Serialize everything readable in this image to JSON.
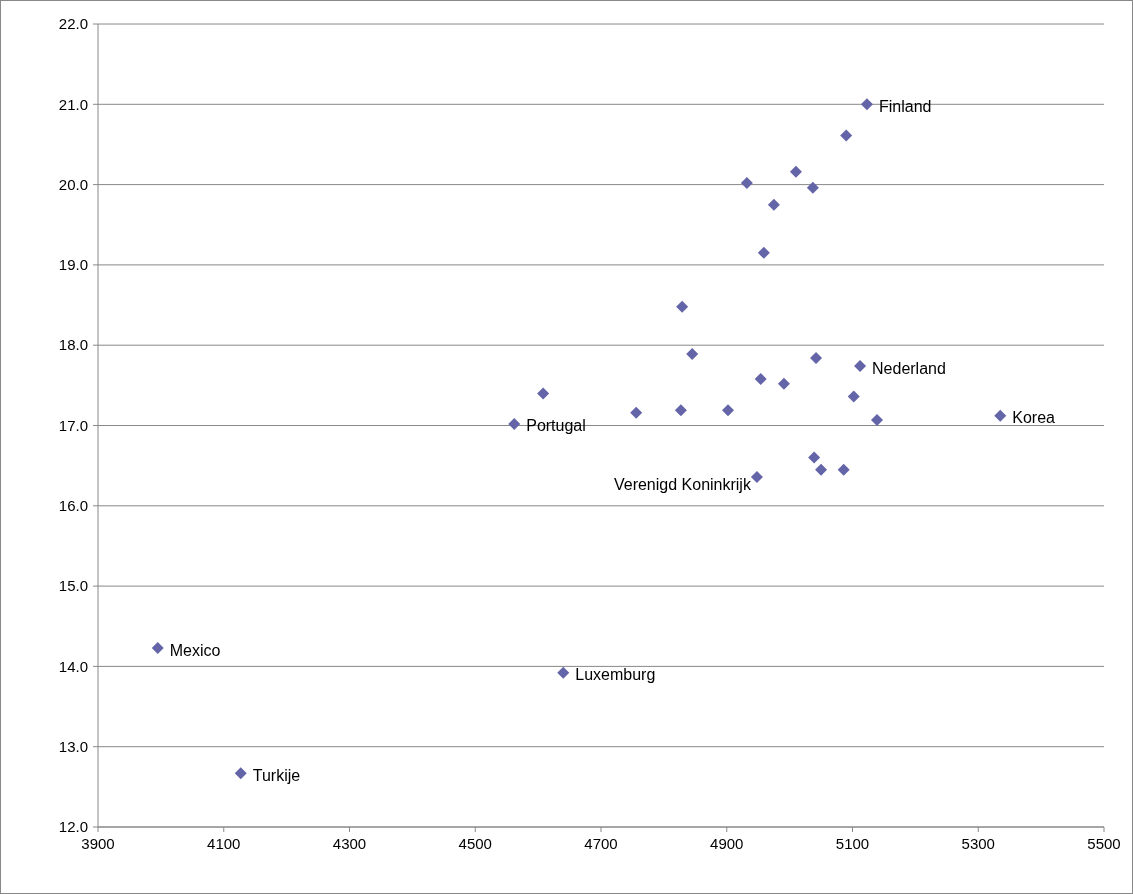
{
  "chart_data": {
    "type": "scatter",
    "marker": "diamond",
    "grid": "y",
    "xlim": [
      3900,
      5500
    ],
    "xticks": [
      3900,
      4100,
      4300,
      4500,
      4700,
      4900,
      5100,
      5300,
      5500
    ],
    "ylim": [
      12,
      22
    ],
    "yticks": [
      {
        "value": 12,
        "label": "12.0"
      },
      {
        "value": 13,
        "label": "13.0"
      },
      {
        "value": 14,
        "label": "14.0"
      },
      {
        "value": 15,
        "label": "15.0"
      },
      {
        "value": 16,
        "label": "16.0"
      },
      {
        "value": 17,
        "label": "17.0"
      },
      {
        "value": 18,
        "label": "18.0"
      },
      {
        "value": 19,
        "label": "19.0"
      },
      {
        "value": 20,
        "label": "20.0"
      },
      {
        "value": 21,
        "label": "21.0"
      },
      {
        "value": 22,
        "label": "22.0"
      }
    ],
    "series": [
      {
        "color": "#6464a8",
        "x": [
          5123,
          5090,
          5010,
          4932,
          5037,
          4975,
          4959,
          4829,
          4845,
          5042,
          5112,
          4954,
          4991,
          4608,
          5102,
          4756,
          4827,
          4902,
          5335,
          5139,
          4562,
          5039,
          5050,
          5086,
          4948,
          3995,
          4640,
          4127
        ],
        "values": [
          21.0,
          20.61,
          20.16,
          20.02,
          19.96,
          19.75,
          19.15,
          18.48,
          17.89,
          17.84,
          17.74,
          17.58,
          17.52,
          17.4,
          17.36,
          17.16,
          17.19,
          17.19,
          17.12,
          17.07,
          17.02,
          16.6,
          16.45,
          16.45,
          16.36,
          14.23,
          13.92,
          12.67
        ]
      }
    ],
    "annotations": [
      {
        "text": "Finland",
        "x": 5123,
        "y": 21.0
      },
      {
        "text": "Nederland",
        "x": 5112,
        "y": 17.74
      },
      {
        "text": "Korea",
        "x": 5335,
        "y": 17.12
      },
      {
        "text": "Portugal",
        "x": 4562,
        "y": 17.02
      },
      {
        "text": "Verenigd Koninkrijk",
        "x": 4948,
        "y": 16.36
      },
      {
        "text": "Mexico",
        "x": 3995,
        "y": 14.23
      },
      {
        "text": "Luxemburg",
        "x": 4640,
        "y": 13.92
      },
      {
        "text": "Turkije",
        "x": 4127,
        "y": 12.67
      }
    ]
  }
}
